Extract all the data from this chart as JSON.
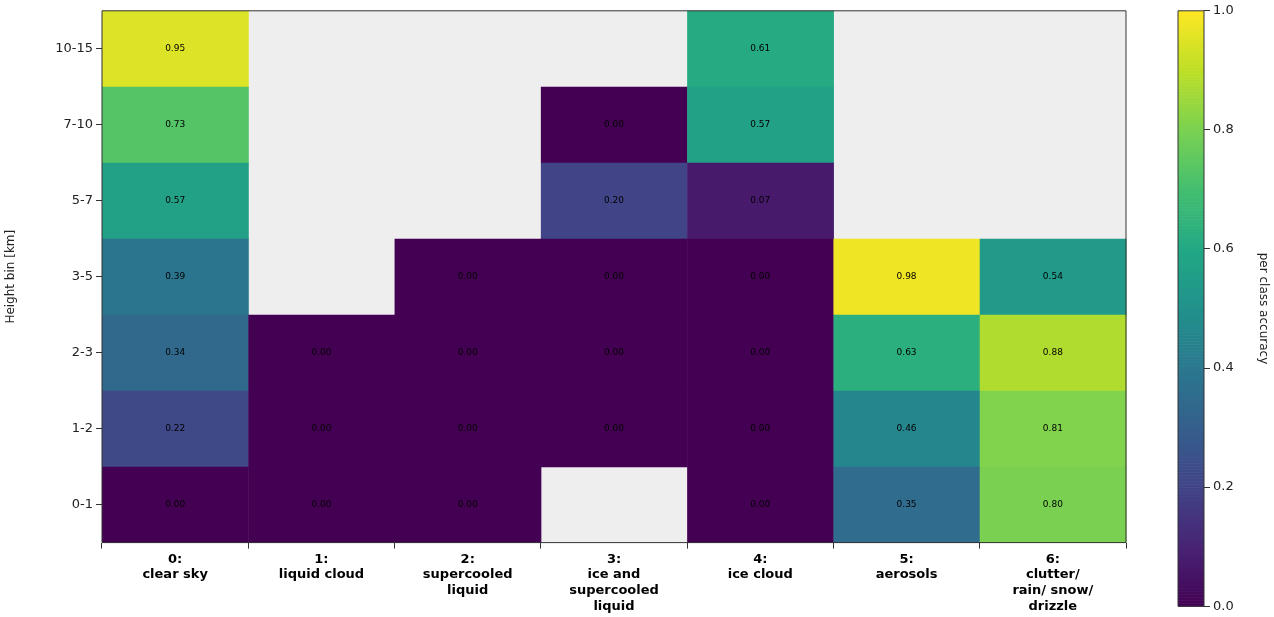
{
  "chart_data": {
    "type": "heatmap",
    "ylabel": "Height bin [km]",
    "clabel": "per class accuracy",
    "categories": [
      "0:\nclear sky",
      "1:\nliquid cloud",
      "2:\nsupercooled\nliquid",
      "3:\nice and\nsupercooled\nliquid",
      "4:\nice cloud",
      "5:\naerosols",
      "6:\nclutter/\nrain/ snow/\ndrizzle"
    ],
    "y_categories": [
      "10-15",
      "7-10",
      "5-7",
      "3-5",
      "2-3",
      "1-2",
      "0-1"
    ],
    "cells": [
      [
        0.95,
        null,
        null,
        null,
        0.61,
        null,
        null
      ],
      [
        0.73,
        null,
        null,
        0.0,
        0.57,
        null,
        null
      ],
      [
        0.57,
        null,
        null,
        0.2,
        0.07,
        null,
        null
      ],
      [
        0.39,
        null,
        0.0,
        0.0,
        0.0,
        0.98,
        0.54
      ],
      [
        0.34,
        0.0,
        0.0,
        0.0,
        0.0,
        0.63,
        0.88
      ],
      [
        0.22,
        0.0,
        0.0,
        0.0,
        0.0,
        0.46,
        0.81
      ],
      [
        0.0,
        0.0,
        0.0,
        null,
        0.0,
        0.35,
        0.8
      ]
    ],
    "cell_labels": [
      [
        "0.95",
        null,
        null,
        null,
        "0.61",
        null,
        null
      ],
      [
        "0.73",
        null,
        null,
        "0.00",
        "0.57",
        null,
        null
      ],
      [
        "0.57",
        null,
        null,
        "0.20",
        "0.07",
        null,
        null
      ],
      [
        "0.39",
        null,
        "0.00",
        "0.00",
        "0.00",
        "0.98",
        "0.54"
      ],
      [
        "0.34",
        "0.00",
        "0.00",
        "0.00",
        "0.00",
        "0.63",
        "0.88"
      ],
      [
        "0.22",
        "0.00",
        "0.00",
        "0.00",
        "0.00",
        "0.46",
        "0.81"
      ],
      [
        "0.00",
        "0.00",
        "0.00",
        null,
        "0.00",
        "0.35",
        "0.80"
      ]
    ],
    "clim": [
      0,
      1
    ],
    "cticks": [
      {
        "value": 0,
        "label": "0.0"
      },
      {
        "value": 0.2,
        "label": "0.2"
      },
      {
        "value": 0.4,
        "label": "0.4"
      },
      {
        "value": 0.6,
        "label": "0.6"
      },
      {
        "value": 0.8,
        "label": "0.8"
      },
      {
        "value": 1,
        "label": "1.0"
      }
    ]
  }
}
